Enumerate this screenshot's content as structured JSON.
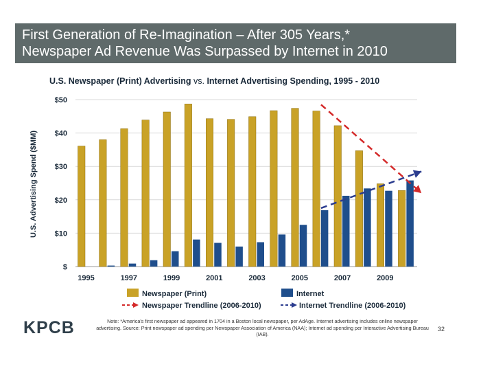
{
  "header": {
    "line1": "First Generation of Re-Imagination – After 305 Years,*",
    "line2": "Newspaper Ad Revenue Was Surpassed by Internet in 2010"
  },
  "subtitle_part1": "U.S. Newspaper (Print) Advertising",
  "subtitle_part2": " vs. ",
  "subtitle_part3": "Internet Advertising Spending, 1995 - 2010",
  "chart_data": {
    "type": "bar",
    "title": "U.S. Newspaper (Print) Advertising vs. Internet Advertising Spending, 1995 - 2010",
    "ylabel": "U.S. Advertising Spend ($MM)",
    "xlabel": "",
    "ylim": [
      0,
      50
    ],
    "yticks": [
      0,
      10,
      20,
      30,
      40,
      50
    ],
    "ytick_labels": [
      "$",
      "$10",
      "$20",
      "$30",
      "$40",
      "$50"
    ],
    "grid": true,
    "categories": [
      "1995",
      "1996",
      "1997",
      "1998",
      "1999",
      "2000",
      "2001",
      "2002",
      "2003",
      "2004",
      "2005",
      "2006",
      "2007",
      "2008",
      "2009",
      "2010"
    ],
    "xtick_labels": [
      "1995",
      "1997",
      "1999",
      "2001",
      "2003",
      "2005",
      "2007",
      "2009"
    ],
    "series": [
      {
        "name": "Newspaper (Print)",
        "color": "#c9a227",
        "values": [
          36.1,
          38.0,
          41.3,
          43.9,
          46.3,
          48.7,
          44.3,
          44.1,
          44.9,
          46.7,
          47.4,
          46.6,
          42.2,
          34.7,
          24.8,
          22.8
        ]
      },
      {
        "name": "Internet",
        "color": "#1f4e8c",
        "values": [
          0.0,
          0.3,
          0.9,
          1.9,
          4.6,
          8.1,
          7.1,
          6.0,
          7.3,
          9.6,
          12.5,
          16.9,
          21.2,
          23.4,
          22.7,
          25.8
        ]
      }
    ],
    "trendlines": [
      {
        "name": "Newspaper Trendline (2006-2010)",
        "color": "#d42a2a",
        "x": [
          2006,
          2010.7
        ],
        "y": [
          48.5,
          22
        ]
      },
      {
        "name": "Internet Trendline (2006-2010)",
        "color": "#2b3c8f",
        "x": [
          2006,
          2010.7
        ],
        "y": [
          17.5,
          28.5
        ]
      }
    ],
    "legend_position": "bottom"
  },
  "note": "Note: *America's first newspaper ad appeared in 1704 in a Boston local newspaper, per AdAge. Internet advertising includes online newspaper advertising.  Source: Print newspaper ad spending per Newspaper Association of America (NAA); Internet ad spending per Interactive Advertising Bureau (IAB).",
  "logo": "KPCB",
  "page_number": "32"
}
